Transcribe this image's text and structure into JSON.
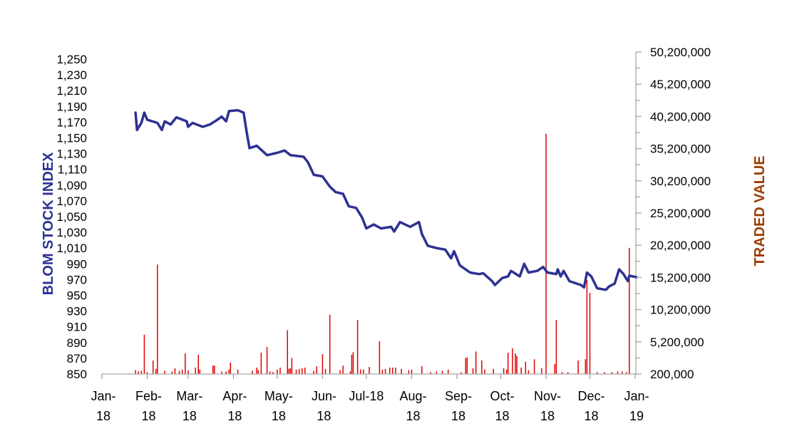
{
  "chart_data": {
    "type": "line+bar",
    "title": "",
    "xlabel": "",
    "ylabel_left": "BLOM STOCK INDEX",
    "ylabel_right": "TRADED VALUE",
    "colors": {
      "index_line": "#2E3192",
      "traded_bars": "#E00000",
      "left_label": "#2E3192",
      "right_label": "#9C3D00",
      "axis": "#A6A6A6",
      "tick_text": "#000000"
    },
    "x_range": [
      "2018-01-01",
      "2019-01-01"
    ],
    "x_ticks": [
      {
        "date": "2018-01-01",
        "label": [
          "Jan-",
          "18"
        ]
      },
      {
        "date": "2018-02-01",
        "label": [
          "Feb-",
          "18"
        ]
      },
      {
        "date": "2018-03-01",
        "label": [
          "Mar-",
          "18"
        ]
      },
      {
        "date": "2018-04-01",
        "label": [
          "Apr-",
          "18"
        ]
      },
      {
        "date": "2018-05-01",
        "label": [
          "May-",
          "18"
        ]
      },
      {
        "date": "2018-06-01",
        "label": [
          "Jun-",
          "18"
        ]
      },
      {
        "date": "2018-07-01",
        "label": [
          "Jul-18"
        ]
      },
      {
        "date": "2018-08-01",
        "label": [
          "Aug-",
          "18"
        ]
      },
      {
        "date": "2018-09-01",
        "label": [
          "Sep-",
          "18"
        ]
      },
      {
        "date": "2018-10-01",
        "label": [
          "Oct-",
          "18"
        ]
      },
      {
        "date": "2018-11-01",
        "label": [
          "Nov-",
          "18"
        ]
      },
      {
        "date": "2018-12-01",
        "label": [
          "Dec-",
          "18"
        ]
      },
      {
        "date": "2019-01-01",
        "label": [
          "Jan-",
          "19"
        ]
      }
    ],
    "left_axis": {
      "range": [
        850,
        1250
      ],
      "ticks": [
        "850",
        "870",
        "890",
        "910",
        "930",
        "950",
        "970",
        "990",
        "1,010",
        "1,030",
        "1,050",
        "1,070",
        "1,090",
        "1,110",
        "1,130",
        "1,150",
        "1,170",
        "1,190",
        "1,210",
        "1,230",
        "1,250"
      ]
    },
    "right_axis": {
      "range": [
        200000,
        50200000
      ],
      "ticks": [
        "200,000",
        "5,200,000",
        "10,200,000",
        "15,200,000",
        "20,200,000",
        "25,200,000",
        "30,200,000",
        "35,200,000",
        "40,200,000",
        "45,200,000",
        "50,200,000"
      ]
    },
    "grid": false,
    "legend": "none",
    "series": [
      {
        "axis": "left",
        "type": "line",
        "points": [
          [
            "2018-01-24",
            1182
          ],
          [
            "2018-01-25",
            1160
          ],
          [
            "2018-01-28",
            1169
          ],
          [
            "2018-01-30",
            1182
          ],
          [
            "2018-02-01",
            1173
          ],
          [
            "2018-02-08",
            1169
          ],
          [
            "2018-02-11",
            1160
          ],
          [
            "2018-02-13",
            1171
          ],
          [
            "2018-02-17",
            1167
          ],
          [
            "2018-02-21",
            1176
          ],
          [
            "2018-02-28",
            1171
          ],
          [
            "2018-03-01",
            1164
          ],
          [
            "2018-03-04",
            1169
          ],
          [
            "2018-03-11",
            1164
          ],
          [
            "2018-03-16",
            1167
          ],
          [
            "2018-03-21",
            1173
          ],
          [
            "2018-03-24",
            1177
          ],
          [
            "2018-03-27",
            1171
          ],
          [
            "2018-03-29",
            1184
          ],
          [
            "2018-04-04",
            1185
          ],
          [
            "2018-04-08",
            1182
          ],
          [
            "2018-04-10",
            1158
          ],
          [
            "2018-04-12",
            1137
          ],
          [
            "2018-04-17",
            1140
          ],
          [
            "2018-04-24",
            1128
          ],
          [
            "2018-05-01",
            1131
          ],
          [
            "2018-05-06",
            1134
          ],
          [
            "2018-05-10",
            1128
          ],
          [
            "2018-05-19",
            1126
          ],
          [
            "2018-05-22",
            1119
          ],
          [
            "2018-05-26",
            1103
          ],
          [
            "2018-06-01",
            1101
          ],
          [
            "2018-06-06",
            1088
          ],
          [
            "2018-06-10",
            1081
          ],
          [
            "2018-06-15",
            1079
          ],
          [
            "2018-06-19",
            1063
          ],
          [
            "2018-06-24",
            1061
          ],
          [
            "2018-06-28",
            1049
          ],
          [
            "2018-07-01",
            1035
          ],
          [
            "2018-07-06",
            1040
          ],
          [
            "2018-07-11",
            1035
          ],
          [
            "2018-07-18",
            1037
          ],
          [
            "2018-07-20",
            1031
          ],
          [
            "2018-07-24",
            1043
          ],
          [
            "2018-07-31",
            1037
          ],
          [
            "2018-08-06",
            1043
          ],
          [
            "2018-08-08",
            1028
          ],
          [
            "2018-08-12",
            1013
          ],
          [
            "2018-08-18",
            1010
          ],
          [
            "2018-08-24",
            1008
          ],
          [
            "2018-08-28",
            997
          ],
          [
            "2018-08-30",
            1006
          ],
          [
            "2018-09-03",
            988
          ],
          [
            "2018-09-10",
            979
          ],
          [
            "2018-09-16",
            977
          ],
          [
            "2018-09-19",
            978
          ],
          [
            "2018-09-25",
            968
          ],
          [
            "2018-09-27",
            963
          ],
          [
            "2018-10-02",
            972
          ],
          [
            "2018-10-06",
            974
          ],
          [
            "2018-10-08",
            981
          ],
          [
            "2018-10-14",
            974
          ],
          [
            "2018-10-17",
            990
          ],
          [
            "2018-10-20",
            979
          ],
          [
            "2018-10-26",
            981
          ],
          [
            "2018-10-30",
            986
          ],
          [
            "2018-11-02",
            979
          ],
          [
            "2018-11-08",
            977
          ],
          [
            "2018-11-09",
            983
          ],
          [
            "2018-11-11",
            974
          ],
          [
            "2018-11-13",
            981
          ],
          [
            "2018-11-17",
            968
          ],
          [
            "2018-11-25",
            963
          ],
          [
            "2018-11-27",
            960
          ],
          [
            "2018-11-29",
            979
          ],
          [
            "2018-12-02",
            974
          ],
          [
            "2018-12-06",
            959
          ],
          [
            "2018-12-12",
            957
          ],
          [
            "2018-12-14",
            961
          ],
          [
            "2018-12-18",
            965
          ],
          [
            "2018-12-21",
            983
          ],
          [
            "2018-12-24",
            977
          ],
          [
            "2018-12-27",
            968
          ],
          [
            "2018-12-28",
            975
          ],
          [
            "2019-01-02",
            973
          ]
        ]
      },
      {
        "axis": "right",
        "type": "bar",
        "points": [
          [
            "2018-01-24",
            800000
          ],
          [
            "2018-01-26",
            600000
          ],
          [
            "2018-01-28",
            700000
          ],
          [
            "2018-01-30",
            6300000
          ],
          [
            "2018-02-01",
            500000
          ],
          [
            "2018-02-05",
            2300000
          ],
          [
            "2018-02-07",
            1000000
          ],
          [
            "2018-02-08",
            17200000
          ],
          [
            "2018-02-13",
            700000
          ],
          [
            "2018-02-18",
            600000
          ],
          [
            "2018-02-20",
            1100000
          ],
          [
            "2018-02-23",
            700000
          ],
          [
            "2018-02-25",
            900000
          ],
          [
            "2018-02-27",
            3400000
          ],
          [
            "2018-03-01",
            800000
          ],
          [
            "2018-03-06",
            1200000
          ],
          [
            "2018-03-08",
            3200000
          ],
          [
            "2018-03-09",
            900000
          ],
          [
            "2018-03-18",
            1500000
          ],
          [
            "2018-03-19",
            1500000
          ],
          [
            "2018-03-24",
            600000
          ],
          [
            "2018-03-27",
            600000
          ],
          [
            "2018-03-29",
            900000
          ],
          [
            "2018-03-30",
            2000000
          ],
          [
            "2018-04-04",
            900000
          ],
          [
            "2018-04-14",
            700000
          ],
          [
            "2018-04-17",
            1200000
          ],
          [
            "2018-04-18",
            800000
          ],
          [
            "2018-04-20",
            3500000
          ],
          [
            "2018-04-24",
            4400000
          ],
          [
            "2018-04-26",
            600000
          ],
          [
            "2018-04-28",
            500000
          ],
          [
            "2018-05-01",
            900000
          ],
          [
            "2018-05-03",
            1200000
          ],
          [
            "2018-05-08",
            7000000
          ],
          [
            "2018-05-09",
            1000000
          ],
          [
            "2018-05-10",
            1100000
          ],
          [
            "2018-05-11",
            2700000
          ],
          [
            "2018-05-14",
            900000
          ],
          [
            "2018-05-16",
            1000000
          ],
          [
            "2018-05-18",
            1100000
          ],
          [
            "2018-05-20",
            1200000
          ],
          [
            "2018-05-26",
            700000
          ],
          [
            "2018-05-28",
            1400000
          ],
          [
            "2018-06-01",
            3300000
          ],
          [
            "2018-06-03",
            1000000
          ],
          [
            "2018-06-06",
            9400000
          ],
          [
            "2018-06-13",
            800000
          ],
          [
            "2018-06-15",
            1500000
          ],
          [
            "2018-06-20",
            600000
          ],
          [
            "2018-06-21",
            3200000
          ],
          [
            "2018-06-22",
            3600000
          ],
          [
            "2018-06-25",
            8600000
          ],
          [
            "2018-06-27",
            900000
          ],
          [
            "2018-06-29",
            900000
          ],
          [
            "2018-07-03",
            1300000
          ],
          [
            "2018-07-10",
            5300000
          ],
          [
            "2018-07-12",
            900000
          ],
          [
            "2018-07-14",
            1000000
          ],
          [
            "2018-07-17",
            1200000
          ],
          [
            "2018-07-19",
            1200000
          ],
          [
            "2018-07-21",
            1200000
          ],
          [
            "2018-07-25",
            1000000
          ],
          [
            "2018-07-30",
            800000
          ],
          [
            "2018-08-01",
            900000
          ],
          [
            "2018-08-08",
            1400000
          ],
          [
            "2018-08-14",
            500000
          ],
          [
            "2018-08-18",
            600000
          ],
          [
            "2018-08-22",
            700000
          ],
          [
            "2018-08-26",
            900000
          ],
          [
            "2018-09-04",
            500000
          ],
          [
            "2018-09-07",
            2700000
          ],
          [
            "2018-09-08",
            2800000
          ],
          [
            "2018-09-12",
            1100000
          ],
          [
            "2018-09-14",
            3700000
          ],
          [
            "2018-09-18",
            2300000
          ],
          [
            "2018-09-20",
            900000
          ],
          [
            "2018-09-26",
            1000000
          ],
          [
            "2018-10-03",
            1100000
          ],
          [
            "2018-10-05",
            900000
          ],
          [
            "2018-10-06",
            3500000
          ],
          [
            "2018-10-09",
            4200000
          ],
          [
            "2018-10-11",
            3400000
          ],
          [
            "2018-10-12",
            3000000
          ],
          [
            "2018-10-15",
            1200000
          ],
          [
            "2018-10-18",
            2100000
          ],
          [
            "2018-10-20",
            800000
          ],
          [
            "2018-10-24",
            2500000
          ],
          [
            "2018-10-29",
            1100000
          ],
          [
            "2018-11-01",
            37500000
          ],
          [
            "2018-11-07",
            1750000
          ],
          [
            "2018-11-08",
            8600000
          ],
          [
            "2018-11-12",
            500000
          ],
          [
            "2018-11-16",
            500000
          ],
          [
            "2018-11-23",
            2300000
          ],
          [
            "2018-11-28",
            2500000
          ],
          [
            "2018-11-29",
            14800000
          ],
          [
            "2018-12-01",
            12800000
          ],
          [
            "2018-12-06",
            500000
          ],
          [
            "2018-12-11",
            500000
          ],
          [
            "2018-12-16",
            500000
          ],
          [
            "2018-12-20",
            600000
          ],
          [
            "2018-12-23",
            600000
          ],
          [
            "2018-12-26",
            500000
          ],
          [
            "2018-12-28",
            19800000
          ]
        ]
      }
    ]
  }
}
